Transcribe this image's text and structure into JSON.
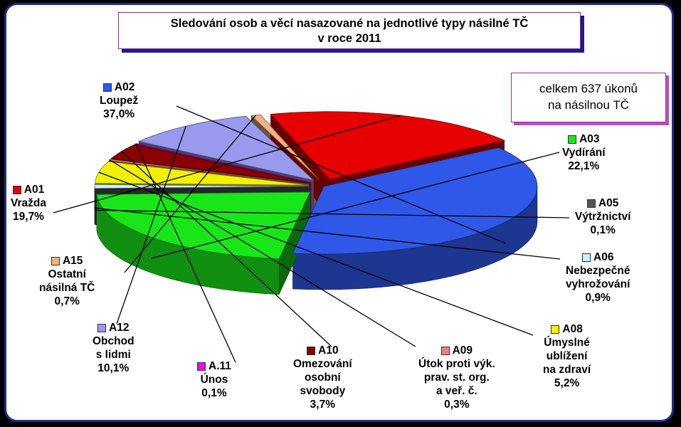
{
  "chart_data": {
    "type": "pie",
    "title_lines": [
      "Sledování osob a věcí nasazované na jednotlivé typy násilné TČ",
      "v roce 2011"
    ],
    "annotation_lines": [
      "celkem 637 úkonů",
      "na násilnou TČ"
    ],
    "slices": [
      {
        "code": "A02",
        "name": "Loupež",
        "value": 37.0,
        "label_pct": "37,0%",
        "color": "#2f57e8"
      },
      {
        "code": "A03",
        "name": "Vydírání",
        "value": 22.1,
        "label_pct": "22,1%",
        "color": "#19e619"
      },
      {
        "code": "A05",
        "name": "Výtržnictví",
        "value": 0.1,
        "label_pct": "0,1%",
        "color": "#555555"
      },
      {
        "code": "A06",
        "name": "Nebezpečné vyhrožování",
        "value": 0.9,
        "label_pct": "0,9%",
        "color": "#c8f4ff"
      },
      {
        "code": "A08",
        "name": "Úmyslné ublížení na zdraví",
        "value": 5.2,
        "label_pct": "5,2%",
        "color": "#f2f200"
      },
      {
        "code": "A09",
        "name": "Útok proti výk. prav. st. org. a veř. č.",
        "value": 0.3,
        "label_pct": "0,3%",
        "color": "#f08080"
      },
      {
        "code": "A10",
        "name": "Omezování osobní svobody",
        "value": 3.7,
        "label_pct": "3,7%",
        "color": "#8b0000"
      },
      {
        "code": "A.11",
        "name": "Únos",
        "value": 0.1,
        "label_pct": "0,1%",
        "color": "#e60ee6"
      },
      {
        "code": "A12",
        "name": "Obchod s lidmi",
        "value": 10.1,
        "label_pct": "10,1%",
        "color": "#9999ee"
      },
      {
        "code": "A15",
        "name": "Ostatní násilná TČ",
        "value": 0.7,
        "label_pct": "0,7%",
        "color": "#f4b183"
      },
      {
        "code": "A01",
        "name": "Vražda",
        "value": 19.7,
        "label_pct": "19,7%",
        "color": "#e60000"
      }
    ],
    "legend_placement": "callouts"
  },
  "labels": [
    {
      "lines": [
        "A02",
        "Loupež",
        "37,0%"
      ]
    },
    {
      "lines": [
        "A03",
        "Vydírání",
        "22,1%"
      ]
    },
    {
      "lines": [
        "A05",
        "Výtržnictví",
        "0,1%"
      ]
    },
    {
      "lines": [
        "A06",
        "Nebezpečné",
        "vyhrožování",
        "0,9%"
      ]
    },
    {
      "lines": [
        "A08",
        "Úmyslné",
        "ublížení",
        "na zdraví",
        "5,2%"
      ]
    },
    {
      "lines": [
        "A09",
        "Útok proti  výk.",
        "prav. st. org.",
        "a veř. č.",
        "0,3%"
      ]
    },
    {
      "lines": [
        "A10",
        "Omezování",
        "osobní",
        "svobody",
        "3,7%"
      ]
    },
    {
      "lines": [
        "A.11",
        "Únos",
        "0,1%"
      ]
    },
    {
      "lines": [
        "A12",
        "Obchod",
        "s lidmi",
        "10,1%"
      ]
    },
    {
      "lines": [
        "A15",
        "Ostatní",
        "násilná TČ",
        "0,7%"
      ]
    },
    {
      "lines": [
        "A01",
        "Vražda",
        "19,7%"
      ]
    }
  ]
}
